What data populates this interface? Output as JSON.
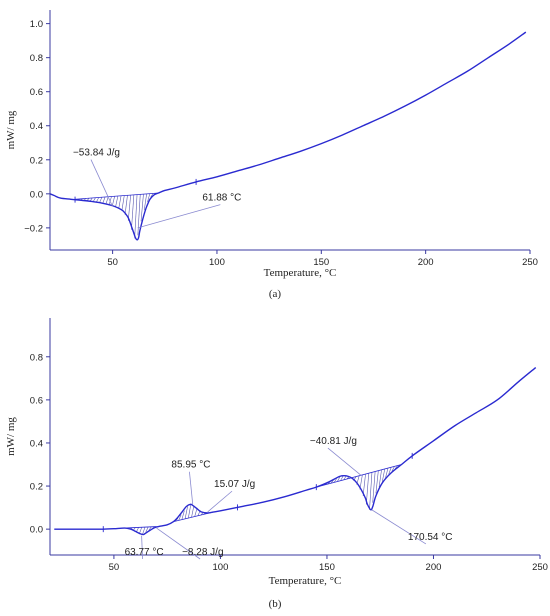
{
  "chart_data": [
    {
      "type": "line",
      "panel_label": "(a)",
      "xlabel": "Temperature, °C",
      "ylabel": "mW/ mg",
      "xlim": [
        20,
        250
      ],
      "ylim": [
        -0.33,
        1.08
      ],
      "xticks": [
        50,
        100,
        150,
        200,
        250
      ],
      "yticks": [
        -0.2,
        0.0,
        0.2,
        0.4,
        0.6,
        0.8,
        1.0
      ],
      "ytick_labels": [
        "−0.2",
        "0.0",
        "0.2",
        "0.4",
        "0.6",
        "0.8",
        "1.0"
      ],
      "series": [
        {
          "x": [
            20,
            22,
            25,
            30,
            35,
            40,
            45,
            50,
            53,
            55,
            57,
            58,
            59,
            60,
            61,
            61.88,
            62.5,
            63,
            64,
            65,
            66,
            67,
            68,
            70,
            72,
            75,
            80,
            90,
            100,
            110,
            120,
            130,
            140,
            150,
            160,
            170,
            180,
            190,
            200,
            210,
            220,
            230,
            240,
            248
          ],
          "values": [
            0.0,
            -0.01,
            -0.025,
            -0.032,
            -0.038,
            -0.045,
            -0.055,
            -0.07,
            -0.085,
            -0.1,
            -0.13,
            -0.155,
            -0.19,
            -0.225,
            -0.26,
            -0.27,
            -0.255,
            -0.22,
            -0.17,
            -0.125,
            -0.085,
            -0.055,
            -0.03,
            -0.005,
            0.005,
            0.02,
            0.035,
            0.07,
            0.1,
            0.135,
            0.17,
            0.21,
            0.25,
            0.295,
            0.345,
            0.4,
            0.455,
            0.515,
            0.58,
            0.65,
            0.72,
            0.8,
            0.88,
            0.95
          ]
        }
      ],
      "hatch": {
        "x_start": 32,
        "x_end": 72,
        "y_start": -0.032,
        "y_end": 0.005
      },
      "tick_marks_x": [
        32,
        90
      ],
      "annotations": [
        {
          "text": "−53.84 J/g",
          "anchor_x": 50,
          "anchor_y": -0.075,
          "label_x": 31,
          "label_y": 0.225
        },
        {
          "text": "61.88 °C",
          "anchor_x": 62,
          "anchor_y": -0.2,
          "label_x": 93,
          "label_y": -0.04
        }
      ]
    },
    {
      "type": "line",
      "panel_label": "(b)",
      "xlabel": "Temperature, °C",
      "ylabel": "mW/ mg",
      "xlim": [
        20,
        250
      ],
      "ylim": [
        -0.12,
        0.98
      ],
      "xticks": [
        50,
        100,
        150,
        200,
        250
      ],
      "yticks": [
        0.0,
        0.2,
        0.4,
        0.6,
        0.8
      ],
      "ytick_labels": [
        "0.0",
        "0.2",
        "0.4",
        "0.6",
        "0.8"
      ],
      "series": [
        {
          "x": [
            22,
            30,
            40,
            45,
            50,
            55,
            58,
            60,
            62,
            63.77,
            65,
            67,
            70,
            75,
            78,
            80,
            82,
            84,
            85.95,
            87,
            89,
            91,
            94,
            97,
            100,
            110,
            120,
            130,
            140,
            145,
            150,
            153,
            156,
            158,
            160,
            162,
            164,
            166,
            168,
            169,
            170.54,
            171.5,
            173,
            176,
            180,
            185,
            190,
            200,
            210,
            220,
            230,
            240,
            248
          ],
          "values": [
            0.0,
            0.0,
            0.0,
            0.0,
            0.002,
            0.005,
            0.0,
            -0.01,
            -0.02,
            -0.025,
            -0.018,
            -0.005,
            0.01,
            0.02,
            0.035,
            0.055,
            0.08,
            0.105,
            0.115,
            0.11,
            0.095,
            0.08,
            0.075,
            0.08,
            0.085,
            0.105,
            0.125,
            0.15,
            0.18,
            0.195,
            0.215,
            0.23,
            0.245,
            0.248,
            0.245,
            0.235,
            0.215,
            0.185,
            0.145,
            0.115,
            0.09,
            0.105,
            0.155,
            0.215,
            0.26,
            0.3,
            0.34,
            0.41,
            0.48,
            0.54,
            0.6,
            0.685,
            0.75
          ]
        }
      ],
      "hatches": [
        {
          "x_start": 55,
          "x_end": 70,
          "y_start": 0.005,
          "y_end": 0.012
        },
        {
          "x_start": 78,
          "x_end": 97,
          "y_start": 0.035,
          "y_end": 0.08
        },
        {
          "x_start": 145,
          "x_end": 185,
          "y_start": 0.195,
          "y_end": 0.3
        }
      ],
      "tick_marks_x": [
        45,
        108,
        145,
        190
      ],
      "annotations": [
        {
          "text": "63.77 °C",
          "anchor_x": 63,
          "anchor_y": -0.03,
          "label_x": 55,
          "label_y": -0.12
        },
        {
          "text": "−8.28 J/g",
          "anchor_x": 70,
          "anchor_y": 0.005,
          "label_x": 82,
          "label_y": -0.12
        },
        {
          "text": "85.95 °C",
          "anchor_x": 87,
          "anchor_y": 0.115,
          "label_x": 77,
          "label_y": 0.285
        },
        {
          "text": "15.07 J/g",
          "anchor_x": 94,
          "anchor_y": 0.08,
          "label_x": 97,
          "label_y": 0.195
        },
        {
          "text": "−40.81 J/g",
          "anchor_x": 166,
          "anchor_y": 0.25,
          "label_x": 142,
          "label_y": 0.395
        },
        {
          "text": "170.54 °C",
          "anchor_x": 171,
          "anchor_y": 0.09,
          "label_x": 188,
          "label_y": -0.05
        }
      ]
    }
  ]
}
